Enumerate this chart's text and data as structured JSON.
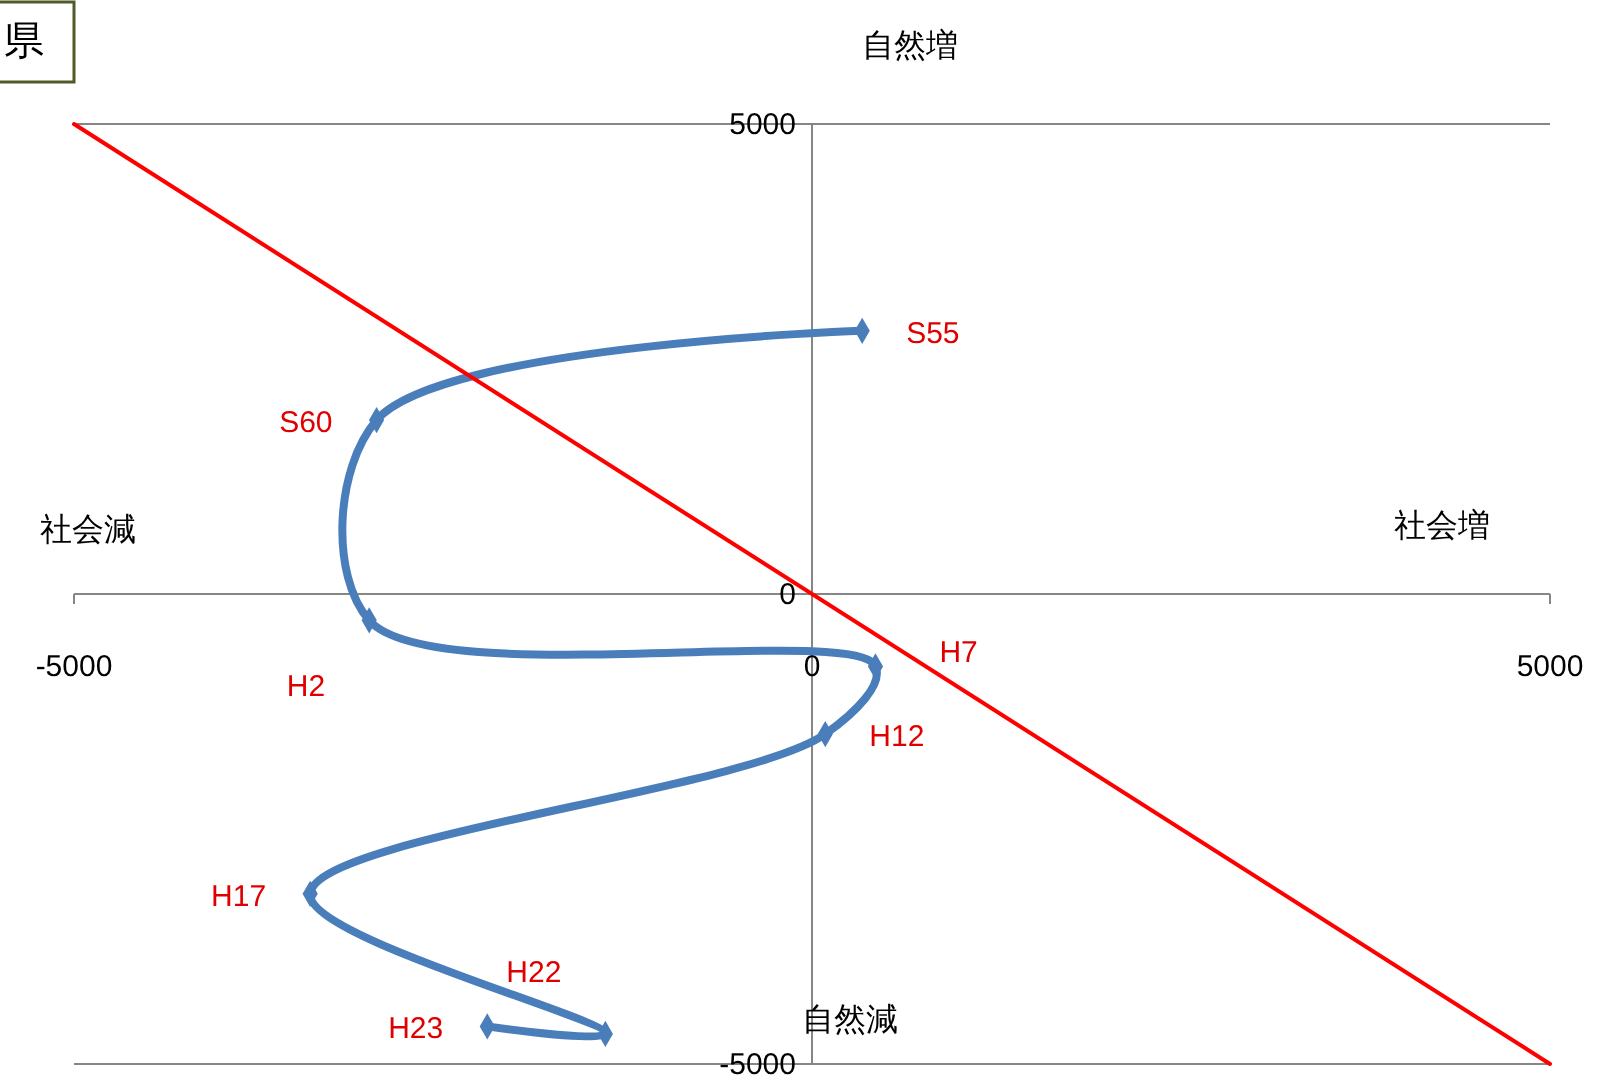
{
  "chart_data": {
    "type": "line",
    "title": "県",
    "xlim": [
      -5000,
      5000
    ],
    "ylim": [
      -5000,
      5000
    ],
    "xticks": [
      -5000,
      0,
      5000
    ],
    "yticks": [
      -5000,
      0,
      5000
    ],
    "marker": "diamond",
    "line_style": "solid",
    "series": [
      {
        "color": "#4a7ebb",
        "x": [
          340,
          -2950,
          -3000,
          430,
          90,
          -3400,
          -1400,
          -2200
        ],
        "values": [
          2800,
          1850,
          -280,
          -770,
          -1490,
          -3190,
          -4680,
          -4600
        ]
      },
      {
        "color": "#ff0000",
        "x": [
          -5000,
          5000
        ],
        "values": [
          5000,
          -5000
        ],
        "marker": "none"
      }
    ],
    "annotations": [
      "自然増",
      "自然減",
      "社会減",
      "社会増",
      {
        "text": "S55",
        "x": 340,
        "y": 2800
      },
      {
        "text": "S60",
        "x": -2950,
        "y": 1850
      },
      {
        "text": "H2",
        "x": -3000,
        "y": -280
      },
      {
        "text": "H7",
        "x": 430,
        "y": -770
      },
      {
        "text": "H12",
        "x": 90,
        "y": -1490
      },
      {
        "text": "H17",
        "x": -3400,
        "y": -3190
      },
      {
        "text": "H22",
        "x": -1400,
        "y": -4680
      },
      {
        "text": "H23",
        "x": -2200,
        "y": -4600
      }
    ]
  }
}
